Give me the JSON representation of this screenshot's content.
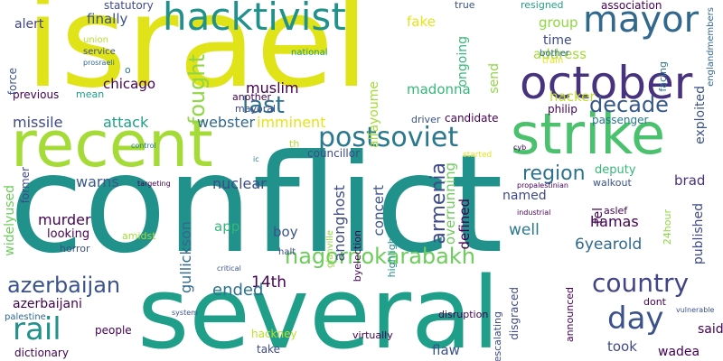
{
  "palette": {
    "dark_purple": "#440154",
    "indigo": "#3b528b",
    "steel_blue": "#31688e",
    "teal": "#21918c",
    "sea_green": "#35b779",
    "lime": "#90d743",
    "yellow": "#fde725"
  },
  "words": [
    {
      "text": "israel",
      "size": 140
    },
    {
      "text": "conflict",
      "size": 150
    },
    {
      "text": "several",
      "size": 110
    },
    {
      "text": "recent",
      "size": 70
    },
    {
      "text": "strike",
      "size": 62
    },
    {
      "text": "october",
      "size": 50
    },
    {
      "text": "hacktivist",
      "size": 42
    },
    {
      "text": "mayor",
      "size": 40
    },
    {
      "text": "postsoviet",
      "size": 30
    },
    {
      "text": "nagornokarabakh",
      "size": 24
    },
    {
      "text": "azerbaijan",
      "size": 24
    },
    {
      "text": "country",
      "size": 28
    },
    {
      "text": "day",
      "size": 34
    },
    {
      "text": "rail",
      "size": 34
    },
    {
      "text": "last",
      "size": 26
    },
    {
      "text": "fought",
      "size": 24
    },
    {
      "text": "decade",
      "size": 24
    },
    {
      "text": "region",
      "size": 22
    },
    {
      "text": "armenia",
      "size": 22
    },
    {
      "text": "muslim",
      "size": 16
    },
    {
      "text": "chicago",
      "size": 15
    },
    {
      "text": "finally",
      "size": 15
    },
    {
      "text": "alert",
      "size": 14
    },
    {
      "text": "statutory",
      "size": 12
    },
    {
      "text": "union",
      "size": 10
    },
    {
      "text": "service",
      "size": 10
    },
    {
      "text": "prosraeli",
      "size": 8
    },
    {
      "text": "o",
      "size": 11
    },
    {
      "text": "national",
      "size": 10
    },
    {
      "text": "fake",
      "size": 15
    },
    {
      "text": "true",
      "size": 11
    },
    {
      "text": "resigned",
      "size": 11
    },
    {
      "text": "association",
      "size": 12
    },
    {
      "text": "group",
      "size": 15
    },
    {
      "text": "time",
      "size": 14
    },
    {
      "text": "address",
      "size": 15
    },
    {
      "text": "bother",
      "size": 10
    },
    {
      "text": "train",
      "size": 10
    },
    {
      "text": "facing",
      "size": 11
    },
    {
      "text": "englandmembers",
      "size": 10
    },
    {
      "text": "ongoing",
      "size": 14
    },
    {
      "text": "send",
      "size": 14
    },
    {
      "text": "madonna",
      "size": 15
    },
    {
      "text": "hacker",
      "size": 15
    },
    {
      "text": "exploited",
      "size": 14
    },
    {
      "text": "alfayoume",
      "size": 14
    },
    {
      "text": "another",
      "size": 11
    },
    {
      "text": "mayoral",
      "size": 11
    },
    {
      "text": "mean",
      "size": 11
    },
    {
      "text": "previous",
      "size": 12
    },
    {
      "text": "force",
      "size": 12
    },
    {
      "text": "missile",
      "size": 16
    },
    {
      "text": "attack",
      "size": 16
    },
    {
      "text": "webster",
      "size": 16
    },
    {
      "text": "imminent",
      "size": 16
    },
    {
      "text": "philip",
      "size": 12
    },
    {
      "text": "passenger",
      "size": 12
    },
    {
      "text": "driver",
      "size": 11
    },
    {
      "text": "candidate",
      "size": 12
    },
    {
      "text": "councillor",
      "size": 12
    },
    {
      "text": "th",
      "size": 11
    },
    {
      "text": "ic",
      "size": 8
    },
    {
      "text": "control",
      "size": 8
    },
    {
      "text": "started",
      "size": 9
    },
    {
      "text": "cyb",
      "size": 8
    },
    {
      "text": "former",
      "size": 12
    },
    {
      "text": "widelyused",
      "size": 14
    },
    {
      "text": "warns",
      "size": 16
    },
    {
      "text": "nuclear",
      "size": 16
    },
    {
      "text": "targeting",
      "size": 8
    },
    {
      "text": "brad",
      "size": 15
    },
    {
      "text": "deputy",
      "size": 13
    },
    {
      "text": "walkout",
      "size": 11
    },
    {
      "text": "named",
      "size": 14
    },
    {
      "text": "propalestinian",
      "size": 8
    },
    {
      "text": "industrial",
      "size": 8
    },
    {
      "text": "aslef",
      "size": 11
    },
    {
      "text": "hamas",
      "size": 16
    },
    {
      "text": "tel",
      "size": 14
    },
    {
      "text": "murder",
      "size": 16
    },
    {
      "text": "looking",
      "size": 13
    },
    {
      "text": "amidst",
      "size": 11
    },
    {
      "text": "gullickson",
      "size": 16
    },
    {
      "text": "app",
      "size": 15
    },
    {
      "text": "boy",
      "size": 15
    },
    {
      "text": "anonghost",
      "size": 16
    },
    {
      "text": "concert",
      "size": 15
    },
    {
      "text": "overrunning",
      "size": 15
    },
    {
      "text": "defined",
      "size": 15
    },
    {
      "text": "well",
      "size": 17
    },
    {
      "text": "6yearold",
      "size": 17
    },
    {
      "text": "24hour",
      "size": 11
    },
    {
      "text": "published",
      "size": 14
    },
    {
      "text": "horror",
      "size": 11
    },
    {
      "text": "halt",
      "size": 10
    },
    {
      "text": "byelection",
      "size": 11
    },
    {
      "text": "glanville",
      "size": 10
    },
    {
      "text": "highlighting",
      "size": 11
    },
    {
      "text": "critical",
      "size": 8
    },
    {
      "text": "14th",
      "size": 17
    },
    {
      "text": "ended",
      "size": 18
    },
    {
      "text": "azerbaijani",
      "size": 14
    },
    {
      "text": "palestine",
      "size": 10
    },
    {
      "text": "system",
      "size": 8
    },
    {
      "text": "people",
      "size": 12
    },
    {
      "text": "dictionary",
      "size": 12
    },
    {
      "text": "hackney",
      "size": 12
    },
    {
      "text": "take",
      "size": 12
    },
    {
      "text": "virtually",
      "size": 11
    },
    {
      "text": "disruption",
      "size": 11
    },
    {
      "text": "escalating",
      "size": 11
    },
    {
      "text": "disgraced",
      "size": 12
    },
    {
      "text": "announced",
      "size": 11
    },
    {
      "text": "flaw",
      "size": 15
    },
    {
      "text": "took",
      "size": 15
    },
    {
      "text": "wadea",
      "size": 14
    },
    {
      "text": "dont",
      "size": 11
    },
    {
      "text": "said",
      "size": 14
    },
    {
      "text": "vulnerable",
      "size": 8
    }
  ]
}
